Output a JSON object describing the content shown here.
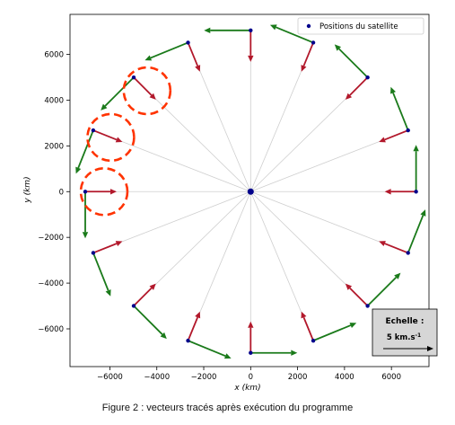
{
  "chart_data": {
    "type": "scatter",
    "title": "",
    "xlabel": "x (km)",
    "ylabel": "y (km)",
    "xlim": [
      -7700,
      7600
    ],
    "ylim": [
      -7650,
      7750
    ],
    "xticks": [
      -6000,
      -4000,
      -2000,
      0,
      2000,
      4000,
      6000
    ],
    "xtick_labels": [
      "−6000",
      "−4000",
      "−2000",
      "0",
      "2000",
      "4000",
      "6000"
    ],
    "yticks": [
      -6000,
      -4000,
      -2000,
      0,
      2000,
      4000,
      6000
    ],
    "ytick_labels": [
      "−6000",
      "−4000",
      "−2000",
      "0",
      "2000",
      "4000",
      "6000"
    ],
    "grid": false,
    "legend": {
      "position": "top-right",
      "entries": [
        "Positions du satellite"
      ]
    },
    "orbit_radius_km": 7050,
    "center": [
      0,
      0
    ],
    "series": [
      {
        "name": "Positions du satellite",
        "points": [
          [
            7050,
            0
          ],
          [
            6709,
            2679
          ],
          [
            4984,
            4994
          ],
          [
            2669,
            6516
          ],
          [
            0,
            7050
          ],
          [
            -2669,
            6516
          ],
          [
            -4984,
            4994
          ],
          [
            -6709,
            2679
          ],
          [
            -7050,
            0
          ],
          [
            -6709,
            -2679
          ],
          [
            -4984,
            -4994
          ],
          [
            -2669,
            -6516
          ],
          [
            0,
            -7050
          ],
          [
            2669,
            -6516
          ],
          [
            4984,
            -4994
          ],
          [
            6709,
            -2679
          ]
        ]
      }
    ],
    "colors": {
      "points": "#00008b",
      "red_vectors": "#b2182b",
      "green_vectors": "#1a7a1a",
      "radial_lines": "#cfcfcf",
      "highlight_circles": "#ff3300"
    },
    "scale_box": {
      "title": "Echelle :",
      "value": "5 km.s",
      "exponent": "-1"
    }
  },
  "caption": "Figure 2 : vecteurs tracés après exécution du programme"
}
